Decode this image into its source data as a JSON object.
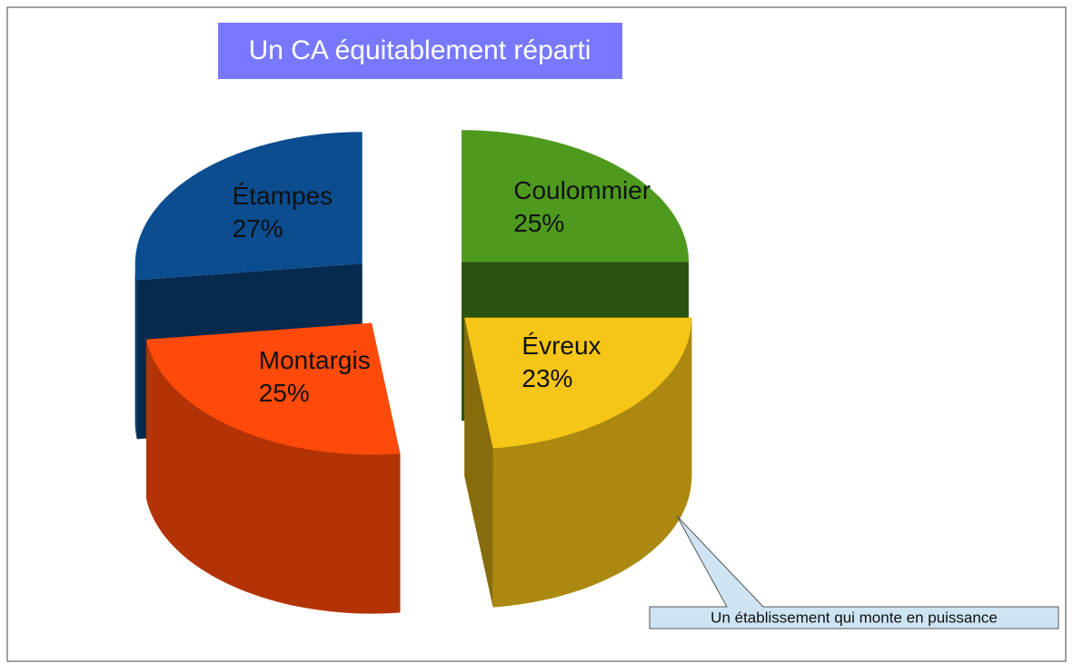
{
  "chart_data": {
    "type": "pie",
    "title": "Un CA équitablement réparti",
    "categories": [
      "Coulommier",
      "Évreux",
      "Montargis",
      "Étampes"
    ],
    "values": [
      25,
      23,
      25,
      27
    ],
    "value_labels": [
      "25%",
      "23%",
      "25%",
      "27%"
    ],
    "colors": [
      "#4e9a1e",
      "#f5c518",
      "#ff4a0a",
      "#0b4d8f"
    ],
    "annotation": "Un établissement qui monte en puissance"
  }
}
